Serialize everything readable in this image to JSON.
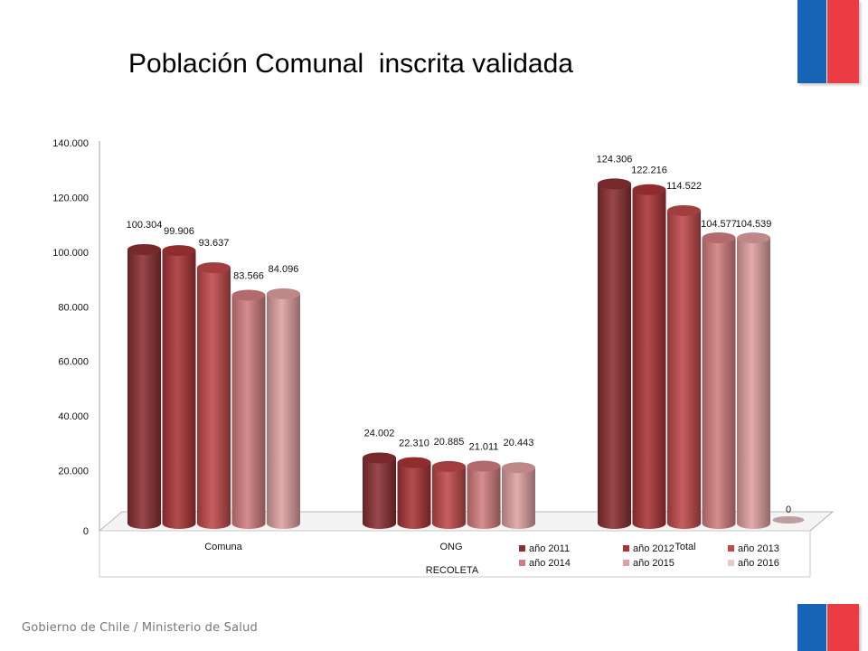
{
  "slide": {
    "title": "Población Comunal  inscrita validada",
    "footer": "Gobierno de Chile / Ministerio de Salud"
  },
  "colors": {
    "flag_blue": "#1763b5",
    "flag_red": "#ec3c43"
  },
  "chart_data": {
    "type": "bar",
    "title": "",
    "xlabel": "RECOLETA",
    "ylabel": "",
    "categories": [
      "Comuna",
      "ONG",
      "Total"
    ],
    "ylim": [
      0,
      140000
    ],
    "yticks": [
      "0",
      "20.000",
      "40.000",
      "60.000",
      "80.000",
      "100.000",
      "120.000",
      "140.000"
    ],
    "series": [
      {
        "name": "año 2011",
        "color": "#8b2f31",
        "values": [
          100304,
          24002,
          124306
        ],
        "labels": [
          "100.304",
          "24.002",
          "124.306"
        ]
      },
      {
        "name": "año 2012",
        "color": "#a93436",
        "values": [
          99906,
          22310,
          122216
        ],
        "labels": [
          "99.906",
          "22.310",
          "122.216"
        ]
      },
      {
        "name": "año 2013",
        "color": "#c0494a",
        "values": [
          93637,
          20885,
          114522
        ],
        "labels": [
          "93.637",
          "20.885",
          "114.522"
        ]
      },
      {
        "name": "año 2014",
        "color": "#d27d7f",
        "values": [
          83566,
          21011,
          104577
        ],
        "labels": [
          "83.566",
          "21.011",
          "104.577"
        ]
      },
      {
        "name": "año 2015",
        "color": "#dfa0a1",
        "values": [
          84096,
          20443,
          104539
        ],
        "labels": [
          "84.096",
          "20.443",
          "104.539"
        ]
      },
      {
        "name": "año 2016",
        "color": "#ecc7c8",
        "values": [
          0,
          0,
          0
        ],
        "labels": [
          "",
          "",
          "0"
        ]
      }
    ],
    "grid": false,
    "legend": "bottom-right"
  }
}
